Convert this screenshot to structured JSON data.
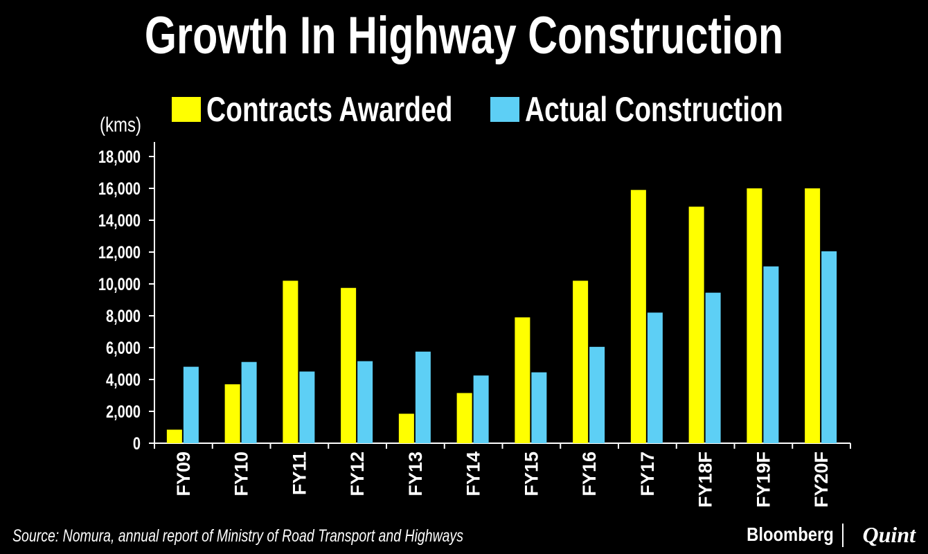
{
  "colors": {
    "background": "#000000",
    "text": "#ffffff",
    "contracts": "#ffff00",
    "construction": "#5dcff5"
  },
  "chart_data": {
    "type": "bar",
    "title": "Growth In Highway Construction",
    "unit_label": "(kms)",
    "xlabel": "",
    "ylabel": "(kms)",
    "ylim": [
      0,
      18000
    ],
    "yticks": [
      0,
      2000,
      4000,
      6000,
      8000,
      10000,
      12000,
      14000,
      16000,
      18000
    ],
    "ytick_labels": [
      "0",
      "2,000",
      "4,000",
      "6,000",
      "8,000",
      "10,000",
      "12,000",
      "14,000",
      "16,000",
      "18,000"
    ],
    "categories": [
      "FY09",
      "FY10",
      "FY11",
      "FY12",
      "FY13",
      "FY14",
      "FY15",
      "FY16",
      "FY17",
      "FY18F",
      "FY19F",
      "FY20F"
    ],
    "legend_position": "top",
    "series": [
      {
        "name": "Contracts Awarded",
        "color": "#ffff00",
        "values": [
          850,
          3700,
          10200,
          9750,
          1850,
          3150,
          7900,
          10200,
          15900,
          14850,
          16000,
          16000
        ]
      },
      {
        "name": "Actual Construction",
        "color": "#5dcff5",
        "values": [
          4800,
          5100,
          4500,
          5150,
          5750,
          4250,
          4450,
          6050,
          8200,
          9450,
          11100,
          12050
        ]
      }
    ]
  },
  "footer": {
    "source": "Source: Nomura, annual report of Ministry of Road Transport and Highways",
    "brand_primary": "Bloomberg",
    "brand_secondary": "Quint"
  }
}
